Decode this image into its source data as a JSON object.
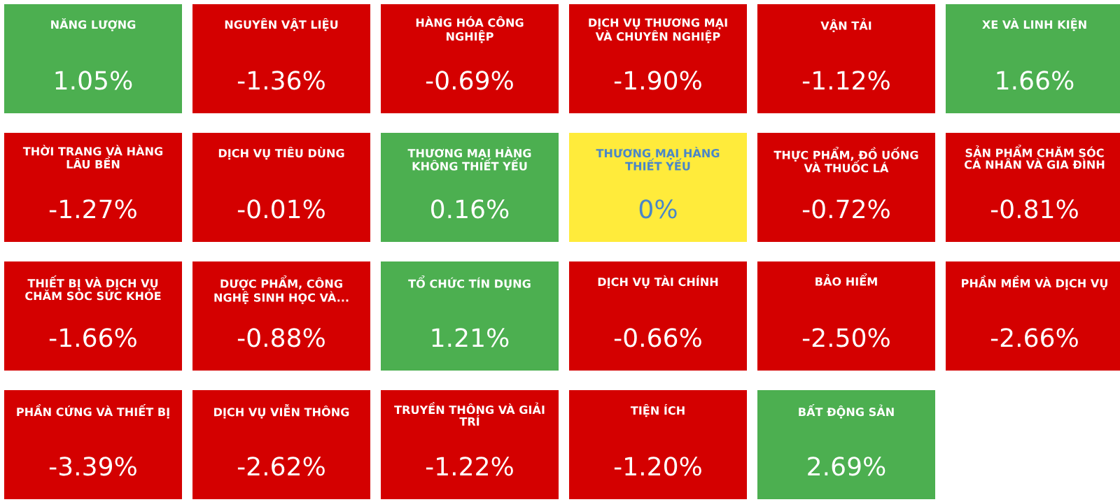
{
  "chart_data": {
    "type": "other",
    "categories": [
      "NĂNG LƯỢNG",
      "NGUYÊN VẬT LIỆU",
      "HÀNG HÓA CÔNG NGHIỆP",
      "DỊCH VỤ THƯƠNG MẠI VÀ CHUYÊN NGHIỆP",
      "VẬN TẢI",
      "XE VÀ LINH KIỆN",
      "THỜI TRANG VÀ HÀNG LÂU BỀN",
      "DỊCH VỤ TIÊU DÙNG",
      "THƯƠNG MẠI HÀNG KHÔNG THIẾT YẾU",
      "THƯƠNG MẠI HÀNG THIẾT YẾU",
      "THỰC PHẨM, ĐỒ UỐNG VÀ THUỐC LÁ",
      "SẢN PHẨM CHĂM SÓC CÁ NHÂN VÀ GIA ĐÌNH",
      "THIẾT BỊ VÀ DỊCH VỤ CHĂM SÓC SỨC KHỎE",
      "DƯỢC PHẨM, CÔNG NGHỆ SINH HỌC VÀ...",
      "TỔ CHỨC TÍN DỤNG",
      "DỊCH VỤ TÀI CHÍNH",
      "BẢO HIỂM",
      "PHẦN MỀM VÀ DỊCH VỤ",
      "PHẦN CỨNG VÀ THIẾT BỊ",
      "DỊCH VỤ VIỄN THÔNG",
      "TRUYỀN THÔNG VÀ GIẢI TRÍ",
      "TIỆN ÍCH",
      "BẤT ĐỘNG SẢN"
    ],
    "values": [
      1.05,
      -1.36,
      -0.69,
      -1.9,
      -1.12,
      1.66,
      -1.27,
      -0.01,
      0.16,
      0,
      -0.72,
      -0.81,
      -1.66,
      -0.88,
      1.21,
      -0.66,
      -2.5,
      -2.66,
      -3.39,
      -2.62,
      -1.22,
      -1.2,
      2.69
    ],
    "value_labels": [
      "1.05%",
      "-1.36%",
      "-0.69%",
      "-1.90%",
      "-1.12%",
      "1.66%",
      "-1.27%",
      "-0.01%",
      "0.16%",
      "0%",
      "-0.72%",
      "-0.81%",
      "-1.66%",
      "-0.88%",
      "1.21%",
      "-0.66%",
      "-2.50%",
      "-2.66%",
      "-3.39%",
      "-2.62%",
      "-1.22%",
      "-1.20%",
      "2.69%"
    ],
    "colors": [
      "#4caf50",
      "#d40000",
      "#d40000",
      "#d40000",
      "#d40000",
      "#4caf50",
      "#d40000",
      "#d40000",
      "#4caf50",
      "#ffeb3b",
      "#d40000",
      "#d40000",
      "#d40000",
      "#d40000",
      "#4caf50",
      "#d40000",
      "#d40000",
      "#d40000",
      "#d40000",
      "#d40000",
      "#d40000",
      "#d40000",
      "#4caf50"
    ]
  }
}
